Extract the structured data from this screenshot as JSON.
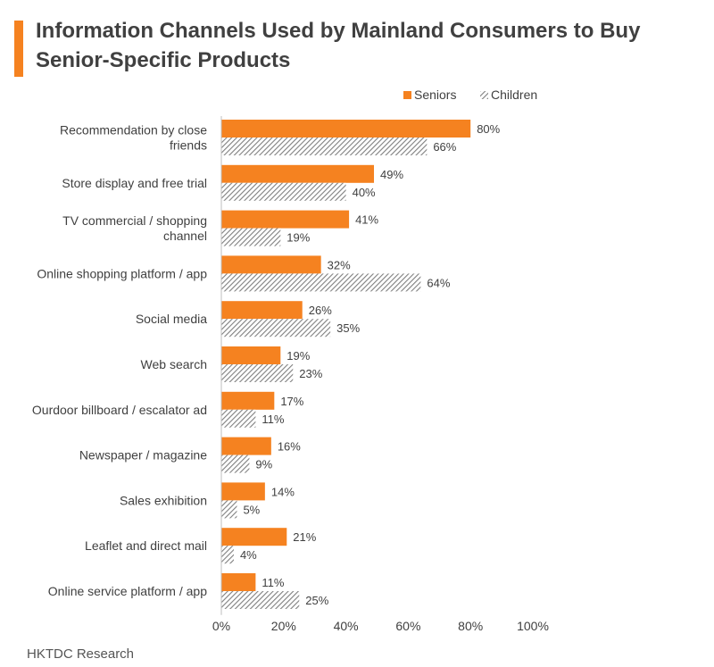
{
  "title": "Information Channels Used by Mainland Consumers to Buy Senior-Specific Products",
  "source": "HKTDC Research",
  "colors": {
    "accent": "#F58220",
    "seniors": "#F58220",
    "children_stripe": "#7F7F7F",
    "text": "#404040"
  },
  "chart_data": {
    "type": "bar",
    "orientation": "horizontal",
    "categories": [
      "Recommendation by close friends",
      "Store display and free trial",
      "TV commercial / shopping channel",
      "Online shopping platform / app",
      "Social media",
      "Web search",
      "Ourdoor billboard / escalator ad",
      "Newspaper / magazine",
      "Sales exhibition",
      "Leaflet and direct mail",
      "Online service platform / app"
    ],
    "category_lines": [
      [
        "Recommendation by close",
        "friends"
      ],
      [
        "Store display and free trial"
      ],
      [
        "TV commercial / shopping",
        "channel"
      ],
      [
        "Online shopping platform / app"
      ],
      [
        "Social media"
      ],
      [
        "Web search"
      ],
      [
        "Ourdoor billboard / escalator ad"
      ],
      [
        "Newspaper / magazine"
      ],
      [
        "Sales exhibition"
      ],
      [
        "Leaflet and direct mail"
      ],
      [
        "Online service platform / app"
      ]
    ],
    "series": [
      {
        "name": "Seniors",
        "values": [
          80,
          49,
          41,
          32,
          26,
          19,
          17,
          16,
          14,
          21,
          11
        ]
      },
      {
        "name": "Children",
        "values": [
          66,
          40,
          19,
          64,
          35,
          23,
          11,
          9,
          5,
          4,
          25
        ]
      }
    ],
    "value_suffix": "%",
    "xlim": [
      0,
      100
    ],
    "xticks": [
      0,
      20,
      40,
      60,
      80,
      100
    ],
    "xtick_labels": [
      "0%",
      "20%",
      "40%",
      "60%",
      "80%",
      "100%"
    ],
    "legend": "top-right",
    "grid": false
  }
}
